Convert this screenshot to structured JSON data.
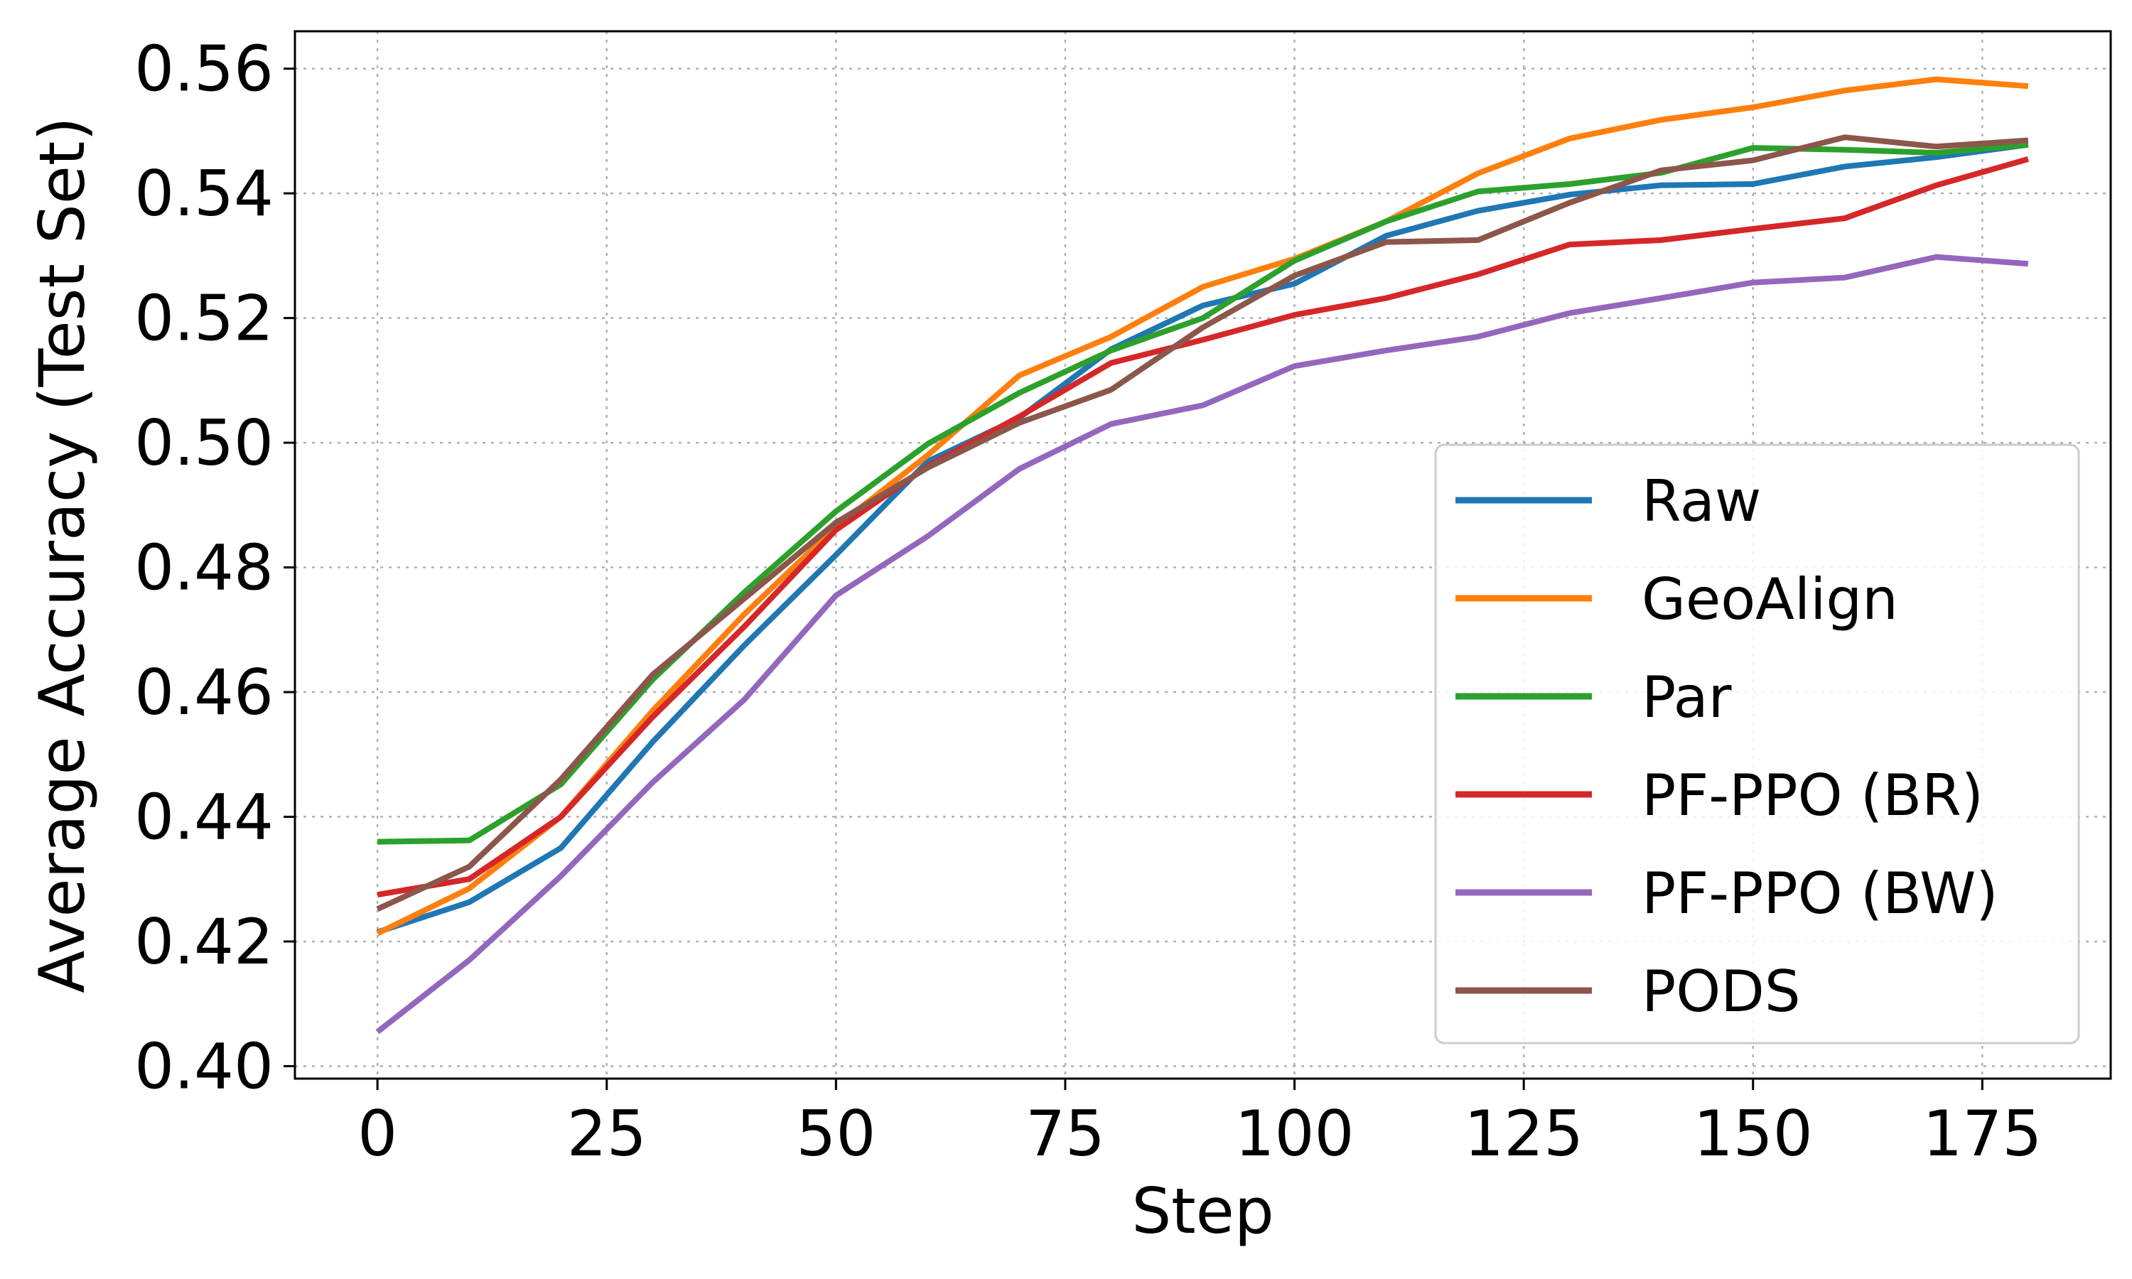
{
  "chart_data": {
    "type": "line",
    "xlabel": "Step",
    "ylabel": "Average Accuracy (Test Set)",
    "xlim": [
      -9,
      189
    ],
    "ylim": [
      0.398,
      0.566
    ],
    "xticks": [
      0,
      25,
      50,
      75,
      100,
      125,
      150,
      175
    ],
    "yticks": [
      0.4,
      0.42,
      0.44,
      0.46,
      0.48,
      0.5,
      0.52,
      0.54,
      0.56
    ],
    "xtick_labels": [
      "0",
      "25",
      "50",
      "75",
      "100",
      "125",
      "150",
      "175"
    ],
    "ytick_labels": [
      "0.40",
      "0.42",
      "0.44",
      "0.46",
      "0.48",
      "0.50",
      "0.52",
      "0.54",
      "0.56"
    ],
    "grid": true,
    "legend_position": "lower-right",
    "x": [
      0,
      10,
      20,
      30,
      40,
      50,
      60,
      70,
      80,
      90,
      100,
      110,
      120,
      130,
      140,
      150,
      160,
      170,
      180
    ],
    "series": [
      {
        "name": "Raw",
        "color": "#1f77b4",
        "values": [
          0.4215,
          0.4263,
          0.435,
          0.452,
          0.4675,
          0.482,
          0.497,
          0.504,
          0.515,
          0.522,
          0.5255,
          0.5332,
          0.5372,
          0.5398,
          0.5413,
          0.5415,
          0.5443,
          0.5458,
          0.5478
        ]
      },
      {
        "name": "GeoAlign",
        "color": "#ff7f0e",
        "values": [
          0.4213,
          0.4285,
          0.44,
          0.457,
          0.4725,
          0.4865,
          0.498,
          0.5108,
          0.517,
          0.525,
          0.5295,
          0.5355,
          0.5432,
          0.5488,
          0.5518,
          0.5538,
          0.5565,
          0.5583,
          0.5572
        ]
      },
      {
        "name": "Par",
        "color": "#2ca02c",
        "values": [
          0.436,
          0.4362,
          0.4452,
          0.462,
          0.476,
          0.489,
          0.4998,
          0.508,
          0.5148,
          0.52,
          0.5292,
          0.5355,
          0.5403,
          0.5415,
          0.5433,
          0.5473,
          0.547,
          0.5465,
          0.5478
        ]
      },
      {
        "name": "PF-PPO (BR)",
        "color": "#d62728",
        "values": [
          0.4275,
          0.43,
          0.44,
          0.456,
          0.4705,
          0.486,
          0.4962,
          0.5042,
          0.5128,
          0.5165,
          0.5205,
          0.5232,
          0.527,
          0.5318,
          0.5325,
          0.5343,
          0.536,
          0.5413,
          0.5455
        ]
      },
      {
        "name": "PF-PPO (BW)",
        "color": "#9467bd",
        "values": [
          0.4055,
          0.417,
          0.4305,
          0.4455,
          0.4588,
          0.4755,
          0.485,
          0.4958,
          0.503,
          0.506,
          0.5123,
          0.5148,
          0.517,
          0.5208,
          0.5232,
          0.5257,
          0.5265,
          0.5298,
          0.5287
        ]
      },
      {
        "name": "PODS",
        "color": "#8c564b",
        "values": [
          0.4252,
          0.432,
          0.446,
          0.4628,
          0.475,
          0.4872,
          0.496,
          0.5032,
          0.5085,
          0.5185,
          0.5268,
          0.5322,
          0.5325,
          0.5385,
          0.5437,
          0.5453,
          0.549,
          0.5475,
          0.5485
        ]
      }
    ]
  }
}
